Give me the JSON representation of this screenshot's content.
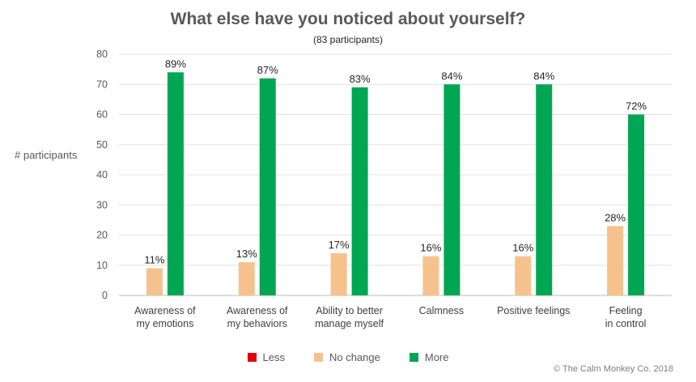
{
  "title": "What else have you noticed about yourself?",
  "subtitle": "(83 participants)",
  "copyright": "© The Calm Monkey Co. 2018",
  "chart_data": {
    "type": "bar",
    "title": "What else have you noticed about yourself?",
    "subtitle": "(83 participants)",
    "ylabel": "# participants",
    "xlabel": "",
    "ylim": [
      0,
      80
    ],
    "yticks": [
      0,
      10,
      20,
      30,
      40,
      50,
      60,
      70,
      80
    ],
    "grid": true,
    "legend_position": "bottom",
    "categories": [
      "Awareness of\nmy emotions",
      "Awareness of\nmy behaviors",
      "Ability to better\nmanage myself",
      "Calmness",
      "Positive feelings",
      "Feeling\nin control"
    ],
    "series": [
      {
        "name": "Less",
        "color": "#e00000",
        "values": [
          0,
          0,
          0,
          0,
          0,
          0
        ],
        "labels": [
          "",
          "",
          "",
          "",
          "",
          ""
        ]
      },
      {
        "name": "No change",
        "color": "#f5c28e",
        "values": [
          9,
          11,
          14,
          13,
          13,
          23
        ],
        "labels": [
          "11%",
          "13%",
          "17%",
          "16%",
          "16%",
          "28%"
        ]
      },
      {
        "name": "More",
        "color": "#00a651",
        "values": [
          74,
          72,
          69,
          70,
          70,
          60
        ],
        "labels": [
          "89%",
          "87%",
          "83%",
          "84%",
          "84%",
          "72%"
        ]
      }
    ]
  }
}
